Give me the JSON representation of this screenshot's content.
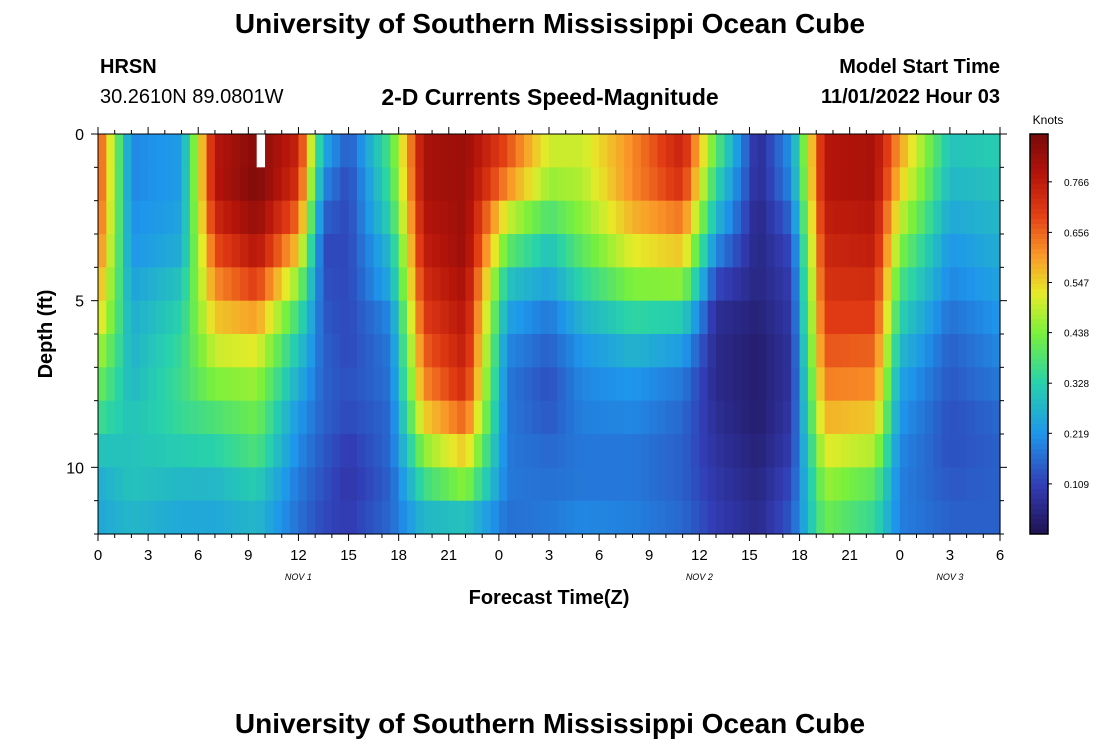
{
  "header": {
    "title": "University of Southern Mississippi Ocean Cube",
    "station": "HRSN",
    "coordinates": "30.2610N  89.0801W",
    "plot_title": "2-D Currents Speed-Magnitude",
    "model_start_label": "Model Start Time",
    "model_start_value": "11/01/2022 Hour 03"
  },
  "footer": {
    "title": "University of Southern Mississippi Ocean Cube"
  },
  "chart_data": {
    "type": "heatmap",
    "title": "2-D Currents Speed-Magnitude",
    "xlabel": "Forecast Time(Z)",
    "ylabel": "Depth (ft)",
    "x_tick_labels": [
      "0",
      "3",
      "6",
      "9",
      "12",
      "15",
      "18",
      "21",
      "0",
      "3",
      "6",
      "9",
      "12",
      "15",
      "18",
      "21",
      "0",
      "3",
      "6"
    ],
    "date_labels": [
      "NOV 1",
      "NOV 2",
      "NOV 3"
    ],
    "date_label_hours": [
      12,
      36,
      51
    ],
    "x_range_hours": [
      0,
      54
    ],
    "depth_ticks": [
      0,
      5,
      10
    ],
    "depth_range_ft": [
      0,
      12
    ],
    "colorbar": {
      "label": "Knots",
      "tick_values": [
        0.766,
        0.656,
        0.547,
        0.438,
        0.328,
        0.219,
        0.109
      ],
      "tick_labels": [
        "0.766",
        "0.656",
        "0.547",
        "0.438",
        "0.328",
        "0.219",
        "0.109"
      ],
      "range": [
        0,
        0.87
      ]
    },
    "grid": {
      "hours_per_column": 0.5,
      "rows": 12,
      "keyframe_hours": [
        0,
        2,
        5,
        7,
        9.5,
        12,
        13.5,
        15,
        17.5,
        19.5,
        22,
        24.5,
        27,
        29,
        32,
        35,
        37,
        39.5,
        41.5,
        43.5,
        46.5,
        48,
        51,
        54
      ],
      "keyframe_profiles": [
        [
          0.7,
          0.7,
          0.68,
          0.65,
          0.6,
          0.55,
          0.48,
          0.42,
          0.36,
          0.3,
          0.26,
          0.25
        ],
        [
          0.2,
          0.2,
          0.21,
          0.22,
          0.24,
          0.26,
          0.27,
          0.28,
          0.3,
          0.3,
          0.3,
          0.28
        ],
        [
          0.23,
          0.23,
          0.24,
          0.26,
          0.3,
          0.33,
          0.35,
          0.36,
          0.35,
          0.32,
          0.28,
          0.25
        ],
        [
          0.78,
          0.78,
          0.74,
          0.68,
          0.62,
          0.56,
          0.5,
          0.44,
          0.38,
          0.33,
          0.28,
          0.25
        ],
        [
          0.85,
          0.86,
          0.83,
          0.78,
          0.7,
          0.6,
          0.52,
          0.46,
          0.42,
          0.38,
          0.32,
          0.28
        ],
        [
          0.75,
          0.72,
          0.65,
          0.56,
          0.45,
          0.36,
          0.3,
          0.26,
          0.22,
          0.2,
          0.18,
          0.17
        ],
        [
          0.25,
          0.2,
          0.15,
          0.12,
          0.13,
          0.14,
          0.15,
          0.15,
          0.15,
          0.14,
          0.13,
          0.12
        ],
        [
          0.14,
          0.12,
          0.12,
          0.12,
          0.12,
          0.12,
          0.12,
          0.13,
          0.12,
          0.1,
          0.09,
          0.1
        ],
        [
          0.38,
          0.36,
          0.33,
          0.28,
          0.25,
          0.2,
          0.18,
          0.17,
          0.16,
          0.16,
          0.15,
          0.16
        ],
        [
          0.8,
          0.8,
          0.78,
          0.76,
          0.73,
          0.7,
          0.66,
          0.62,
          0.55,
          0.45,
          0.36,
          0.28
        ],
        [
          0.82,
          0.82,
          0.82,
          0.82,
          0.8,
          0.78,
          0.76,
          0.73,
          0.66,
          0.56,
          0.45,
          0.3
        ],
        [
          0.68,
          0.62,
          0.5,
          0.4,
          0.3,
          0.24,
          0.2,
          0.18,
          0.18,
          0.18,
          0.18,
          0.17
        ],
        [
          0.5,
          0.46,
          0.38,
          0.3,
          0.24,
          0.18,
          0.15,
          0.13,
          0.14,
          0.16,
          0.17,
          0.18
        ],
        [
          0.5,
          0.48,
          0.45,
          0.4,
          0.34,
          0.27,
          0.22,
          0.2,
          0.19,
          0.18,
          0.18,
          0.2
        ],
        [
          0.62,
          0.62,
          0.58,
          0.52,
          0.44,
          0.34,
          0.27,
          0.22,
          0.2,
          0.18,
          0.18,
          0.19
        ],
        [
          0.75,
          0.72,
          0.64,
          0.56,
          0.45,
          0.32,
          0.23,
          0.18,
          0.16,
          0.15,
          0.15,
          0.16
        ],
        [
          0.4,
          0.34,
          0.28,
          0.2,
          0.12,
          0.07,
          0.06,
          0.06,
          0.07,
          0.08,
          0.09,
          0.1
        ],
        [
          0.06,
          0.06,
          0.05,
          0.05,
          0.05,
          0.04,
          0.03,
          0.03,
          0.03,
          0.04,
          0.05,
          0.06
        ],
        [
          0.22,
          0.2,
          0.16,
          0.12,
          0.1,
          0.09,
          0.08,
          0.08,
          0.09,
          0.1,
          0.12,
          0.14
        ],
        [
          0.78,
          0.78,
          0.76,
          0.74,
          0.72,
          0.7,
          0.67,
          0.63,
          0.58,
          0.52,
          0.46,
          0.42
        ],
        [
          0.8,
          0.8,
          0.78,
          0.76,
          0.73,
          0.7,
          0.66,
          0.62,
          0.56,
          0.48,
          0.4,
          0.35
        ],
        [
          0.6,
          0.56,
          0.5,
          0.44,
          0.38,
          0.33,
          0.28,
          0.24,
          0.22,
          0.2,
          0.19,
          0.19
        ],
        [
          0.3,
          0.28,
          0.25,
          0.22,
          0.2,
          0.17,
          0.15,
          0.14,
          0.13,
          0.13,
          0.14,
          0.15
        ],
        [
          0.32,
          0.3,
          0.28,
          0.26,
          0.24,
          0.22,
          0.2,
          0.18,
          0.16,
          0.15,
          0.15,
          0.15
        ]
      ],
      "missing_cell": {
        "hour": 9.5,
        "row": 0
      }
    }
  }
}
